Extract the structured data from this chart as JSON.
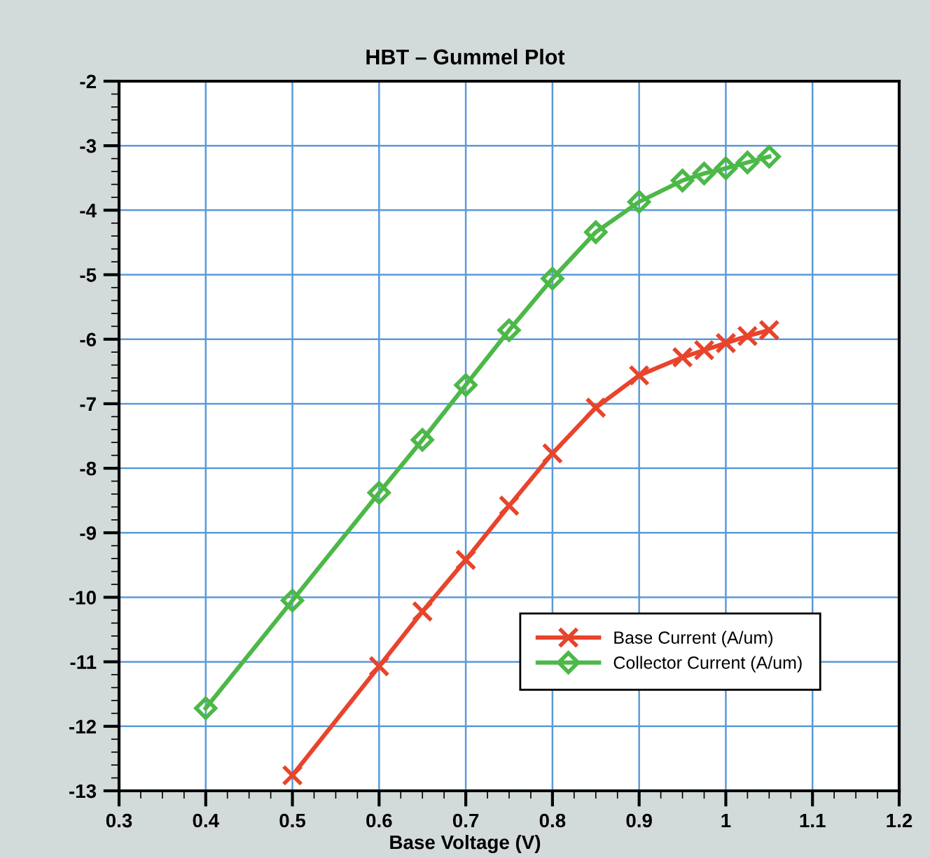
{
  "chart_data": {
    "type": "line",
    "title": "HBT – Gummel Plot",
    "xlabel": "Base Voltage (V)",
    "x": [
      0.5,
      0.6,
      0.65,
      0.7,
      0.75,
      0.8,
      0.85,
      0.9,
      0.95,
      0.975,
      1.0,
      1.025,
      1.05
    ],
    "series": [
      {
        "name": "Base Current (A/um)",
        "color": "#e8442c",
        "marker": "cross",
        "values": [
          -12.76,
          -11.07,
          -10.22,
          -9.42,
          -8.58,
          -7.77,
          -7.06,
          -6.56,
          -6.28,
          -6.17,
          -6.06,
          -5.95,
          -5.86
        ]
      },
      {
        "name": "Collector Current (A/um)",
        "color": "#4cb848",
        "marker": "diamond",
        "x": [
          0.4,
          0.5,
          0.6,
          0.65,
          0.7,
          0.75,
          0.8,
          0.85,
          0.9,
          0.95,
          0.975,
          1.0,
          1.025,
          1.05
        ],
        "values": [
          -11.72,
          -10.05,
          -8.38,
          -7.56,
          -6.71,
          -5.86,
          -5.06,
          -4.34,
          -3.87,
          -3.54,
          -3.43,
          -3.35,
          -3.26,
          -3.17
        ]
      }
    ],
    "xlim": [
      0.3,
      1.2
    ],
    "xticks": [
      0.3,
      0.4,
      0.5,
      0.6,
      0.7,
      0.8,
      0.9,
      1,
      1.1,
      1.2
    ],
    "ylim": [
      -13,
      -2
    ],
    "yticks": [
      -13,
      -12,
      -11,
      -10,
      -9,
      -8,
      -7,
      -6,
      -5,
      -4,
      -3,
      -2
    ],
    "grid": true,
    "legend": "bottom right"
  }
}
